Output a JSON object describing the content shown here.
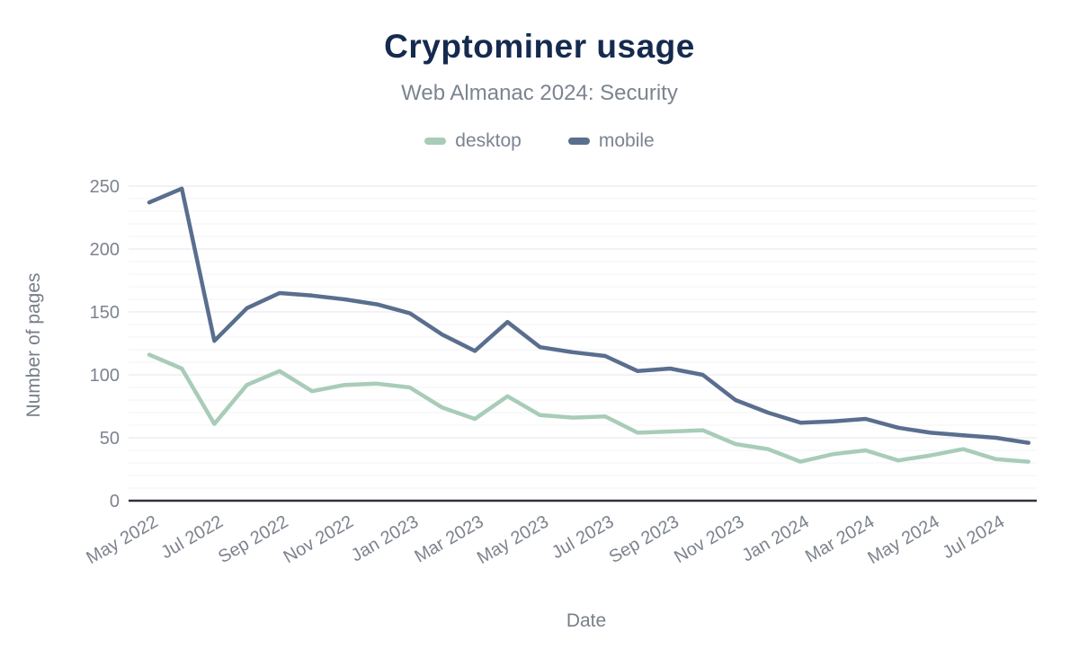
{
  "header": {
    "title": "Cryptominer usage",
    "subtitle": "Web Almanac 2024: Security"
  },
  "legend": [
    {
      "label": "desktop",
      "color": "#a8ccb8"
    },
    {
      "label": "mobile",
      "color": "#5a6e8e"
    }
  ],
  "axes": {
    "y_label": "Number of pages",
    "x_label": "Date",
    "y_ticks": [
      0,
      50,
      100,
      150,
      200,
      250
    ],
    "x_tick_labels": [
      "May 2022",
      "Jul 2022",
      "Sep 2022",
      "Nov 2022",
      "Jan 2023",
      "Mar 2023",
      "May 2023",
      "Jul 2023",
      "Sep 2023",
      "Nov 2023",
      "Jan 2024",
      "Mar 2024",
      "May 2024",
      "Jul 2024"
    ]
  },
  "chart_data": {
    "type": "line",
    "title": "Cryptominer usage",
    "subtitle": "Web Almanac 2024: Security",
    "xlabel": "Date",
    "ylabel": "Number of pages",
    "ylim": [
      0,
      250
    ],
    "grid": "horizontal; minor every 10, major every 50",
    "legend_position": "top",
    "x": [
      "May 2022",
      "Jun 2022",
      "Jul 2022",
      "Aug 2022",
      "Sep 2022",
      "Oct 2022",
      "Nov 2022",
      "Dec 2022",
      "Jan 2023",
      "Feb 2023",
      "Mar 2023",
      "Apr 2023",
      "May 2023",
      "Jun 2023",
      "Jul 2023",
      "Aug 2023",
      "Sep 2023",
      "Oct 2023",
      "Nov 2023",
      "Dec 2023",
      "Jan 2024",
      "Feb 2024",
      "Mar 2024",
      "Apr 2024",
      "May 2024",
      "Jun 2024",
      "Jul 2024",
      "Aug 2024"
    ],
    "series": [
      {
        "name": "desktop",
        "color": "#a8ccb8",
        "values": [
          116,
          105,
          61,
          92,
          103,
          87,
          92,
          93,
          90,
          74,
          65,
          83,
          68,
          66,
          67,
          54,
          55,
          56,
          45,
          41,
          31,
          37,
          40,
          32,
          36,
          41,
          33,
          31
        ]
      },
      {
        "name": "mobile",
        "color": "#5a6e8e",
        "values": [
          237,
          248,
          127,
          153,
          165,
          163,
          160,
          156,
          149,
          132,
          119,
          142,
          122,
          118,
          115,
          103,
          105,
          100,
          80,
          70,
          62,
          63,
          65,
          58,
          54,
          52,
          50,
          46
        ]
      }
    ]
  }
}
